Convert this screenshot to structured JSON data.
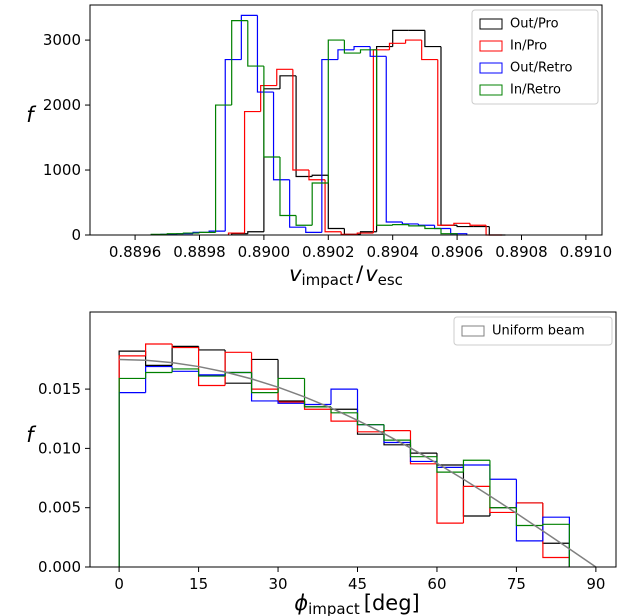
{
  "chart_data": [
    {
      "type": "histogram",
      "x_label": [
        "v",
        "impact",
        "/",
        "v",
        "esc"
      ],
      "y_label": "f",
      "xlim": [
        0.88946,
        0.89105
      ],
      "ylim": [
        0,
        3540
      ],
      "xticks": [
        0.8896,
        0.8898,
        {
          "value": 0.89,
          "label": "0.8900"
        },
        0.8902,
        0.8904,
        0.8906,
        0.8908,
        {
          "value": 0.891,
          "label": "0.8910"
        }
      ],
      "yticks": [
        0,
        1000,
        2000,
        3000
      ],
      "legend": "upper right",
      "series": [
        {
          "name": "Out/Pro",
          "color": "#000000",
          "bins": [
            0.8899,
            0.88995,
            0.89,
            0.89005,
            0.8901,
            0.89015,
            0.8902,
            0.89025,
            0.8903,
            0.89035,
            0.8904,
            0.89045,
            0.8905,
            0.89055,
            0.8906,
            0.89065,
            0.8907,
            0.89075
          ],
          "values": [
            20,
            50,
            2250,
            2450,
            900,
            920,
            100,
            10,
            50,
            2900,
            3150,
            3150,
            2900,
            150,
            130,
            130,
            0
          ]
        },
        {
          "name": "In/Pro",
          "color": "#ff0000",
          "bins": [
            0.88989,
            0.88994,
            0.88999,
            0.89004,
            0.89009,
            0.89014,
            0.89019,
            0.89024,
            0.89029,
            0.89034,
            0.89039,
            0.89044,
            0.89049,
            0.89054,
            0.89059,
            0.89064,
            0.89069,
            0.89074
          ],
          "values": [
            30,
            1900,
            2300,
            2550,
            1000,
            850,
            50,
            10,
            30,
            2850,
            2950,
            3000,
            2700,
            150,
            180,
            150,
            0
          ]
        },
        {
          "name": "Out/Retro",
          "color": "#0000ff",
          "bins": [
            0.88968,
            0.88973,
            0.88978,
            0.88983,
            0.88988,
            0.88993,
            0.88998,
            0.89003,
            0.89008,
            0.89013,
            0.89018,
            0.89023,
            0.89028,
            0.89033,
            0.89038,
            0.89043,
            0.89048,
            0.89053,
            0.89058,
            0.89063
          ],
          "values": [
            10,
            20,
            40,
            60,
            2700,
            3380,
            2200,
            850,
            120,
            40,
            2700,
            2850,
            2900,
            2750,
            200,
            170,
            150,
            100,
            20
          ]
        },
        {
          "name": "In/Retro",
          "color": "#008000",
          "bins": [
            0.88965,
            0.8897,
            0.88975,
            0.8898,
            0.88985,
            0.8899,
            0.88995,
            0.89,
            0.89005,
            0.8901,
            0.89015,
            0.8902,
            0.89025,
            0.8903,
            0.89035,
            0.8904,
            0.89045,
            0.8905,
            0.89055,
            0.8906
          ],
          "values": [
            10,
            20,
            30,
            40,
            2000,
            3300,
            2600,
            1200,
            300,
            150,
            800,
            3000,
            2800,
            2850,
            150,
            160,
            140,
            100,
            20
          ]
        }
      ]
    },
    {
      "type": "histogram",
      "x_label": [
        "ϕ",
        "impact",
        "[deg]"
      ],
      "y_label": "f",
      "xlim": [
        -5.5,
        93.8
      ],
      "ylim": [
        0,
        0.0215
      ],
      "xticks": [
        0,
        15,
        30,
        45,
        60,
        75,
        90
      ],
      "yticks": [
        {
          "value": 0,
          "label": "0.000"
        },
        {
          "value": 0.005,
          "label": "0.005"
        },
        {
          "value": 0.01,
          "label": "0.010"
        },
        {
          "value": 0.015,
          "label": "0.015"
        }
      ],
      "legend": "upper right",
      "series": [
        {
          "name": "Out/Pro",
          "color": "#000000",
          "bins": [
            0,
            5,
            10,
            15,
            20,
            25,
            30,
            35,
            40,
            45,
            50,
            55,
            60,
            65,
            70,
            75,
            80,
            85
          ],
          "values": [
            0.0182,
            0.017,
            0.0186,
            0.0183,
            0.0155,
            0.0175,
            0.014,
            0.0135,
            0.0133,
            0.0112,
            0.0103,
            0.0096,
            0.0086,
            0.0043,
            0.005,
            0.0054,
            0.002
          ]
        },
        {
          "name": "In/Pro",
          "color": "#ff0000",
          "bins": [
            0,
            5,
            10,
            15,
            20,
            25,
            30,
            35,
            40,
            45,
            50,
            55,
            60,
            65,
            70,
            75,
            80,
            85
          ],
          "values": [
            0.0178,
            0.0188,
            0.0185,
            0.0153,
            0.0181,
            0.015,
            0.0139,
            0.0133,
            0.0123,
            0.0114,
            0.0115,
            0.0087,
            0.0037,
            0.0068,
            0.0046,
            0.0054,
            0.0008
          ]
        },
        {
          "name": "Out/Retro",
          "color": "#0000ff",
          "bins": [
            0,
            5,
            10,
            15,
            20,
            25,
            30,
            35,
            40,
            45,
            50,
            55,
            60,
            65,
            70,
            75,
            80,
            85
          ],
          "values": [
            0.0147,
            0.0169,
            0.0165,
            0.0162,
            0.0164,
            0.014,
            0.0138,
            0.0137,
            0.015,
            0.012,
            0.0105,
            0.0089,
            0.0084,
            0.0086,
            0.0074,
            0.0022,
            0.0042
          ]
        },
        {
          "name": "In/Retro",
          "color": "#008000",
          "bins": [
            0,
            5,
            10,
            15,
            20,
            25,
            30,
            35,
            40,
            45,
            50,
            55,
            60,
            65,
            70,
            75,
            80,
            85
          ],
          "values": [
            0.0159,
            0.0164,
            0.0167,
            0.0161,
            0.0164,
            0.0147,
            0.0159,
            0.0135,
            0.013,
            0.012,
            0.0107,
            0.0093,
            0.008,
            0.009,
            0.005,
            0.0035,
            0.0036
          ]
        },
        {
          "name": "Uniform beam",
          "color": "#808080",
          "type": "line",
          "x": [
            0,
            5,
            10,
            15,
            20,
            25,
            30,
            35,
            40,
            45,
            50,
            55,
            60,
            65,
            70,
            75,
            80,
            85,
            90
          ],
          "values": [
            0.0175,
            0.01743,
            0.01723,
            0.0169,
            0.01644,
            0.01586,
            0.01516,
            0.01434,
            0.01341,
            0.01237,
            0.01125,
            0.01004,
            0.00875,
            0.0074,
            0.00599,
            0.00453,
            0.00304,
            0.00153,
            0
          ]
        }
      ]
    }
  ]
}
